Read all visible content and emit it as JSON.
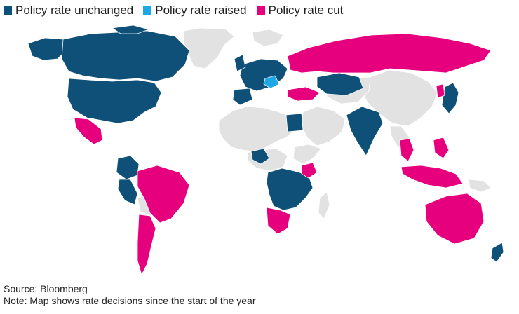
{
  "legend": {
    "items": [
      {
        "label": "Policy rate unchanged",
        "color": "#0f5078"
      },
      {
        "label": "Policy rate raised",
        "color": "#1fa8e6"
      },
      {
        "label": "Policy rate cut",
        "color": "#e6007e"
      }
    ]
  },
  "colors": {
    "unchanged": "#0f5078",
    "raised": "#1fa8e6",
    "cut": "#e6007e",
    "no_data": "#e2e2e2",
    "border": "#ffffff"
  },
  "footer": {
    "source": "Source: Bloomberg",
    "note": "Note: Map shows rate decisions since the start of the year"
  }
}
